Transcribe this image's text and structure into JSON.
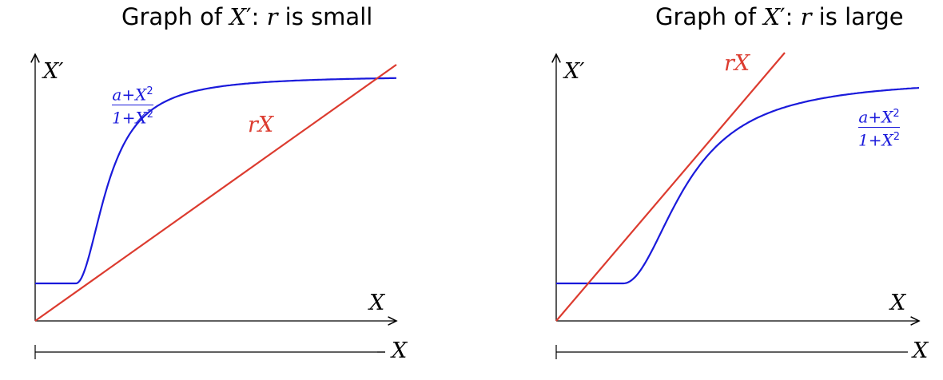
{
  "panels": [
    {
      "title_prefix": "Graph of ",
      "title_var": "X",
      "title_prime": "′",
      "title_mid": ": ",
      "title_r": "r",
      "title_suffix": " is small",
      "y_label": "X′",
      "x_label": "X",
      "bottom_label": "X",
      "line_label": "rX",
      "curve_num": "a+X",
      "curve_den": "1+X",
      "curve_exp": "2",
      "colors": {
        "curve": "#1a1adb",
        "line": "#dc3b2f",
        "axis": "#000000"
      }
    },
    {
      "title_prefix": "Graph of ",
      "title_var": "X",
      "title_prime": "′",
      "title_mid": ": ",
      "title_r": "r",
      "title_suffix": " is large",
      "y_label": "X′",
      "x_label": "X",
      "bottom_label": "X",
      "line_label": "rX",
      "curve_num": "a+X",
      "curve_den": "1+X",
      "curve_exp": "2",
      "colors": {
        "curve": "#1a1adb",
        "line": "#dc3b2f",
        "axis": "#000000"
      }
    }
  ]
}
